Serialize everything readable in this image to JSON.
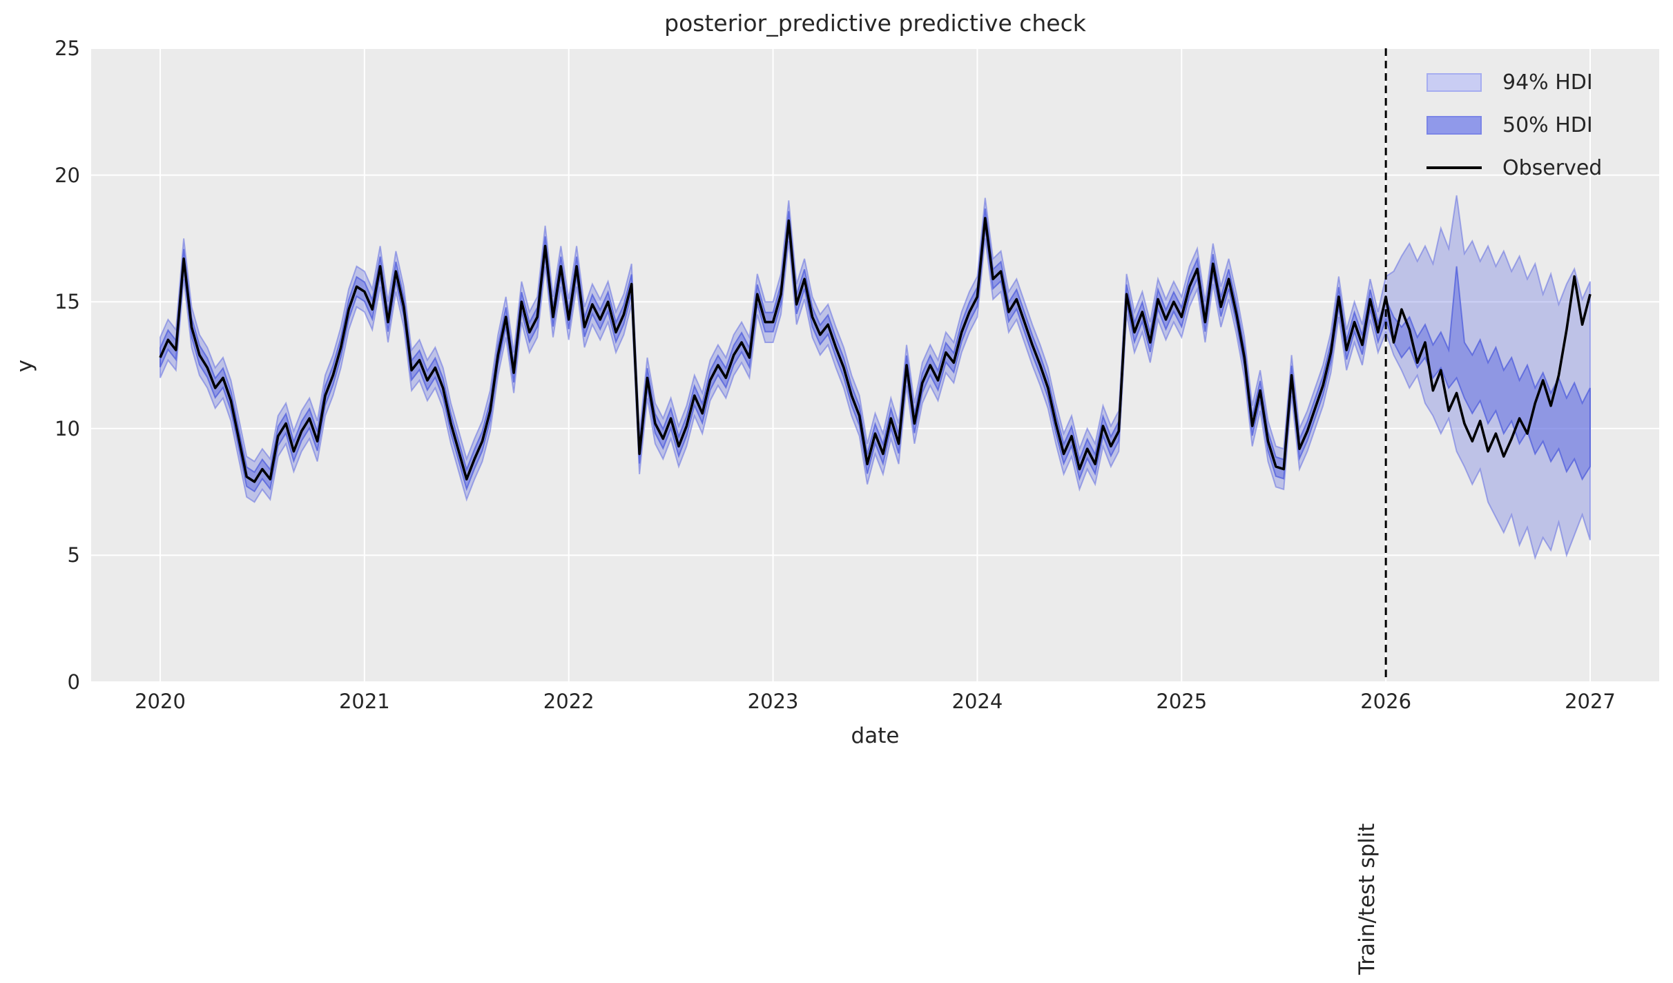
{
  "chart_data": {
    "type": "line",
    "title": "posterior_predictive predictive check",
    "xlabel": "date",
    "ylabel": "y",
    "xlim": [
      2019.66,
      2027.34
    ],
    "ylim": [
      0,
      25
    ],
    "grid": true,
    "xticks": [
      2020,
      2021,
      2022,
      2023,
      2024,
      2025,
      2026,
      2027
    ],
    "yticks": [
      0,
      5,
      10,
      15,
      20,
      25
    ],
    "legend_position": "upper right",
    "legend": [
      {
        "label": "94% HDI",
        "type": "patch"
      },
      {
        "label": "50% HDI",
        "type": "patch"
      },
      {
        "label": "Observed",
        "type": "line"
      }
    ],
    "split": {
      "x": 2026.0,
      "label": "Train/test split"
    },
    "colors": {
      "band_base": "#6470e0",
      "hdi94_fill": "rgba(100,112,224,0.33)",
      "hdi94_edge": "rgba(100,112,224,0.55)",
      "hdi50_fill": "rgba(100,112,224,0.52)",
      "hdi50_edge": "rgba(82,96,220,0.78)",
      "observed": "#000000",
      "split_line": "#000000",
      "axes_bg": "#ebebeb",
      "grid": "#ffffff",
      "text": "#262626",
      "legend94_fill": "#c9cdf3",
      "legend94_edge": "#a6adf0",
      "legend50_fill": "#9099ea",
      "legend50_edge": "#7b85e7"
    },
    "x": {
      "start": 2020.0,
      "step_years": 0.0384615385,
      "count": 183
    },
    "observed_y": [
      12.8,
      13.5,
      13.1,
      16.7,
      14.0,
      12.9,
      12.4,
      11.6,
      12.0,
      11.1,
      9.6,
      8.1,
      7.9,
      8.4,
      8.0,
      9.7,
      10.2,
      9.1,
      9.9,
      10.4,
      9.5,
      11.3,
      12.1,
      13.2,
      14.7,
      15.6,
      15.4,
      14.7,
      16.4,
      14.2,
      16.2,
      14.8,
      12.3,
      12.7,
      11.9,
      12.4,
      11.6,
      10.2,
      9.1,
      8.0,
      8.8,
      9.5,
      10.7,
      12.9,
      14.4,
      12.2,
      15.0,
      13.8,
      14.4,
      17.2,
      14.4,
      16.4,
      14.3,
      16.4,
      14.0,
      14.9,
      14.3,
      15.0,
      13.8,
      14.5,
      15.7,
      9.0,
      12.0,
      10.2,
      9.6,
      10.4,
      9.3,
      10.1,
      11.3,
      10.6,
      11.9,
      12.5,
      12.0,
      12.9,
      13.4,
      12.8,
      15.3,
      14.2,
      14.2,
      15.3,
      18.2,
      14.9,
      15.9,
      14.4,
      13.7,
      14.1,
      13.2,
      12.4,
      11.3,
      10.5,
      8.6,
      9.8,
      9.0,
      10.4,
      9.4,
      12.5,
      10.2,
      11.8,
      12.5,
      11.9,
      13.0,
      12.6,
      13.8,
      14.6,
      15.2,
      18.3,
      15.9,
      16.2,
      14.6,
      15.1,
      14.2,
      13.3,
      12.5,
      11.6,
      10.2,
      9.0,
      9.7,
      8.4,
      9.2,
      8.6,
      10.1,
      9.3,
      9.9,
      15.3,
      13.8,
      14.6,
      13.4,
      15.1,
      14.3,
      15.0,
      14.4,
      15.6,
      16.3,
      14.2,
      16.5,
      14.8,
      15.9,
      14.5,
      12.8,
      10.1,
      11.5,
      9.5,
      8.5,
      8.4,
      12.1,
      9.2,
      9.9,
      10.8,
      11.7,
      13.0,
      15.2,
      13.1,
      14.2,
      13.3,
      15.1,
      13.8,
      15.2,
      13.4,
      14.7,
      13.9,
      12.6,
      13.4,
      11.5,
      12.3,
      10.7,
      11.4,
      10.2,
      9.5,
      10.3,
      9.1,
      9.8,
      8.9,
      9.6,
      10.4,
      9.8,
      11.0,
      11.9,
      10.9,
      12.1,
      13.9,
      16.0,
      14.1,
      15.3
    ],
    "hdi_train": {
      "note": "bands track observed line before split",
      "half_width_94": 0.8,
      "half_width_50": 0.38
    },
    "hdi_forecast": {
      "x_start": 2026.0,
      "step_years": 0.0384615385,
      "hi94": [
        16.0,
        16.2,
        16.8,
        17.3,
        16.6,
        17.2,
        16.5,
        17.9,
        17.1,
        19.2,
        16.9,
        17.4,
        16.6,
        17.2,
        16.4,
        17.0,
        16.2,
        16.8,
        15.9,
        16.5,
        15.3,
        16.1,
        14.9,
        15.7,
        16.3,
        15.1,
        15.8
      ],
      "lo94": [
        13.8,
        12.9,
        12.3,
        11.6,
        12.1,
        11.0,
        10.5,
        9.8,
        10.4,
        9.1,
        8.5,
        7.8,
        8.4,
        7.1,
        6.5,
        5.9,
        6.6,
        5.4,
        6.1,
        4.9,
        5.7,
        5.2,
        6.3,
        5.0,
        5.8,
        6.6,
        5.6
      ],
      "hi50": [
        15.1,
        14.4,
        14.0,
        14.4,
        13.6,
        14.1,
        13.3,
        13.8,
        13.1,
        16.4,
        13.4,
        12.9,
        13.5,
        12.6,
        13.2,
        12.3,
        12.8,
        11.9,
        12.5,
        11.6,
        12.2,
        11.4,
        12.0,
        11.2,
        11.8,
        11.0,
        11.6
      ],
      "lo50": [
        14.3,
        13.4,
        12.8,
        13.2,
        12.4,
        12.8,
        12.0,
        12.4,
        11.6,
        12.0,
        11.2,
        10.6,
        11.1,
        10.2,
        10.7,
        9.8,
        10.3,
        9.4,
        9.9,
        9.0,
        9.5,
        8.7,
        9.2,
        8.3,
        8.8,
        8.0,
        8.5
      ]
    }
  }
}
